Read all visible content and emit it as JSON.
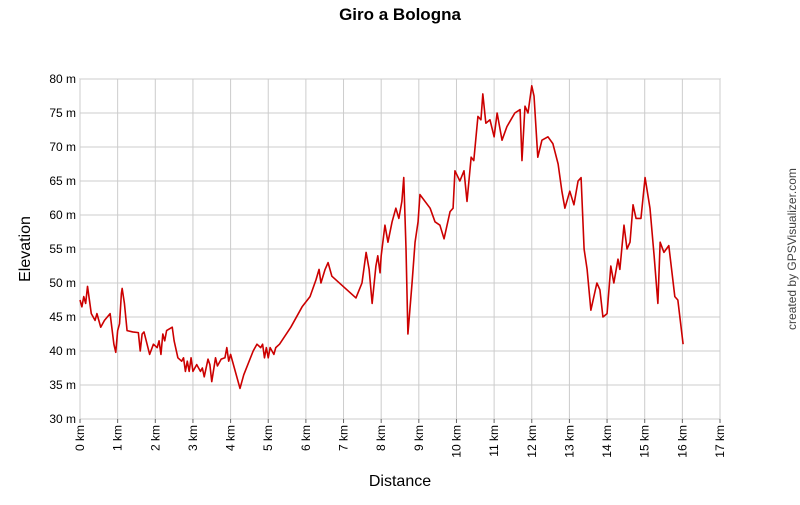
{
  "chart_data": {
    "type": "line",
    "title": "Giro a Bologna",
    "x_label": "Distance",
    "y_label": "Elevation",
    "credit": "created by GPSVisualizer.com",
    "color": "#cc0000",
    "grid": true,
    "xlim": [
      0,
      17
    ],
    "ylim": [
      30,
      80
    ],
    "xticks": [
      {
        "value": 0,
        "label": "0 km"
      },
      {
        "value": 1,
        "label": "1 km"
      },
      {
        "value": 2,
        "label": "2 km"
      },
      {
        "value": 3,
        "label": "3 km"
      },
      {
        "value": 4,
        "label": "4 km"
      },
      {
        "value": 5,
        "label": "5 km"
      },
      {
        "value": 6,
        "label": "6 km"
      },
      {
        "value": 7,
        "label": "7 km"
      },
      {
        "value": 8,
        "label": "8 km"
      },
      {
        "value": 9,
        "label": "9 km"
      },
      {
        "value": 10,
        "label": "10 km"
      },
      {
        "value": 11,
        "label": "11 km"
      },
      {
        "value": 12,
        "label": "12 km"
      },
      {
        "value": 13,
        "label": "13 km"
      },
      {
        "value": 14,
        "label": "14 km"
      },
      {
        "value": 15,
        "label": "15 km"
      },
      {
        "value": 16,
        "label": "16 km"
      },
      {
        "value": 17,
        "label": "17 km"
      }
    ],
    "yticks": [
      {
        "value": 30,
        "label": "30 m"
      },
      {
        "value": 35,
        "label": "35 m"
      },
      {
        "value": 40,
        "label": "40 m"
      },
      {
        "value": 45,
        "label": "45 m"
      },
      {
        "value": 50,
        "label": "50 m"
      },
      {
        "value": 55,
        "label": "55 m"
      },
      {
        "value": 60,
        "label": "60 m"
      },
      {
        "value": 65,
        "label": "65 m"
      },
      {
        "value": 70,
        "label": "70 m"
      },
      {
        "value": 75,
        "label": "75 m"
      },
      {
        "value": 80,
        "label": "80 m"
      }
    ],
    "x": [
      0,
      0.05,
      0.1,
      0.15,
      0.2,
      0.25,
      0.3,
      0.4,
      0.45,
      0.5,
      0.55,
      0.65,
      0.8,
      0.9,
      0.95,
      1.0,
      1.05,
      1.1,
      1.12,
      1.18,
      1.25,
      1.4,
      1.55,
      1.6,
      1.65,
      1.7,
      1.85,
      1.95,
      2.05,
      2.1,
      2.15,
      2.2,
      2.25,
      2.3,
      2.45,
      2.5,
      2.6,
      2.7,
      2.75,
      2.8,
      2.85,
      2.9,
      2.95,
      3.0,
      3.1,
      3.2,
      3.25,
      3.3,
      3.4,
      3.45,
      3.5,
      3.6,
      3.65,
      3.75,
      3.85,
      3.9,
      3.95,
      4.0,
      4.1,
      4.25,
      4.35,
      4.6,
      4.7,
      4.8,
      4.85,
      4.9,
      4.95,
      5.0,
      5.05,
      5.15,
      5.2,
      5.3,
      5.6,
      5.9,
      6.11,
      6.27,
      6.35,
      6.4,
      6.51,
      6.59,
      6.69,
      7.33,
      7.49,
      7.6,
      7.68,
      7.76,
      7.86,
      7.91,
      7.97,
      8.0,
      8.1,
      8.18,
      8.29,
      8.39,
      8.47,
      8.55,
      8.6,
      8.66,
      8.71,
      8.82,
      8.9,
      8.98,
      9.03,
      9.3,
      9.43,
      9.56,
      9.67,
      9.83,
      9.91,
      9.96,
      10.09,
      10.2,
      10.28,
      10.39,
      10.46,
      10.57,
      10.65,
      10.7,
      10.78,
      10.89,
      11.0,
      11.08,
      11.21,
      11.34,
      11.55,
      11.69,
      11.74,
      11.82,
      11.9,
      12.0,
      12.06,
      12.16,
      12.27,
      12.43,
      12.56,
      12.7,
      12.8,
      12.88,
      13.01,
      13.12,
      13.23,
      13.31,
      13.39,
      13.47,
      13.57,
      13.73,
      13.81,
      13.89,
      14.0,
      14.1,
      14.18,
      14.29,
      14.34,
      14.45,
      14.53,
      14.61,
      14.69,
      14.77,
      14.9,
      15.01,
      15.14,
      15.25,
      15.35,
      15.41,
      15.51,
      15.64,
      15.8,
      15.88,
      16.02
    ],
    "values": [
      47.5,
      46.5,
      48,
      47,
      49.5,
      47.5,
      45.5,
      44.5,
      45.5,
      44.5,
      43.5,
      44.5,
      45.5,
      41,
      39.8,
      43,
      44,
      48.5,
      49.2,
      47,
      43,
      42.8,
      42.7,
      40,
      42.5,
      42.8,
      39.5,
      41,
      40.5,
      41.5,
      39.5,
      42.5,
      41.5,
      43,
      43.5,
      41.5,
      39,
      38.5,
      39,
      37,
      38.5,
      37,
      39,
      37,
      38,
      37,
      37.5,
      36.2,
      38.8,
      38,
      35.5,
      39,
      37.8,
      38.8,
      39,
      40.5,
      38.5,
      39.5,
      37.5,
      34.5,
      36.5,
      40,
      41,
      40.5,
      41,
      39,
      40.5,
      39,
      40.5,
      39.5,
      40.5,
      41,
      43.5,
      46.5,
      48,
      50.5,
      52,
      50,
      52,
      53,
      51,
      47.8,
      50,
      54.5,
      52,
      47,
      52.5,
      54,
      51.5,
      54,
      58.5,
      56,
      59,
      61,
      59.5,
      62,
      65.5,
      55,
      42.5,
      50,
      56,
      59,
      63,
      61,
      59,
      58.5,
      56.5,
      60.5,
      61,
      66.5,
      65,
      66.5,
      62,
      68.5,
      68,
      74.5,
      74,
      77.8,
      73.5,
      74,
      71.5,
      75,
      71,
      73,
      75,
      75.5,
      68,
      76,
      75,
      79,
      77.5,
      68.5,
      71,
      71.5,
      70.5,
      67.5,
      63.5,
      61,
      63.5,
      61.5,
      65,
      65.5,
      55,
      52,
      46,
      50,
      49,
      45,
      45.5,
      52.5,
      50,
      53.5,
      52,
      58.5,
      55,
      56,
      61.5,
      59.5,
      59.5,
      65.5,
      61,
      54,
      47,
      56,
      54.5,
      55.5,
      48,
      47.5,
      41
    ]
  }
}
